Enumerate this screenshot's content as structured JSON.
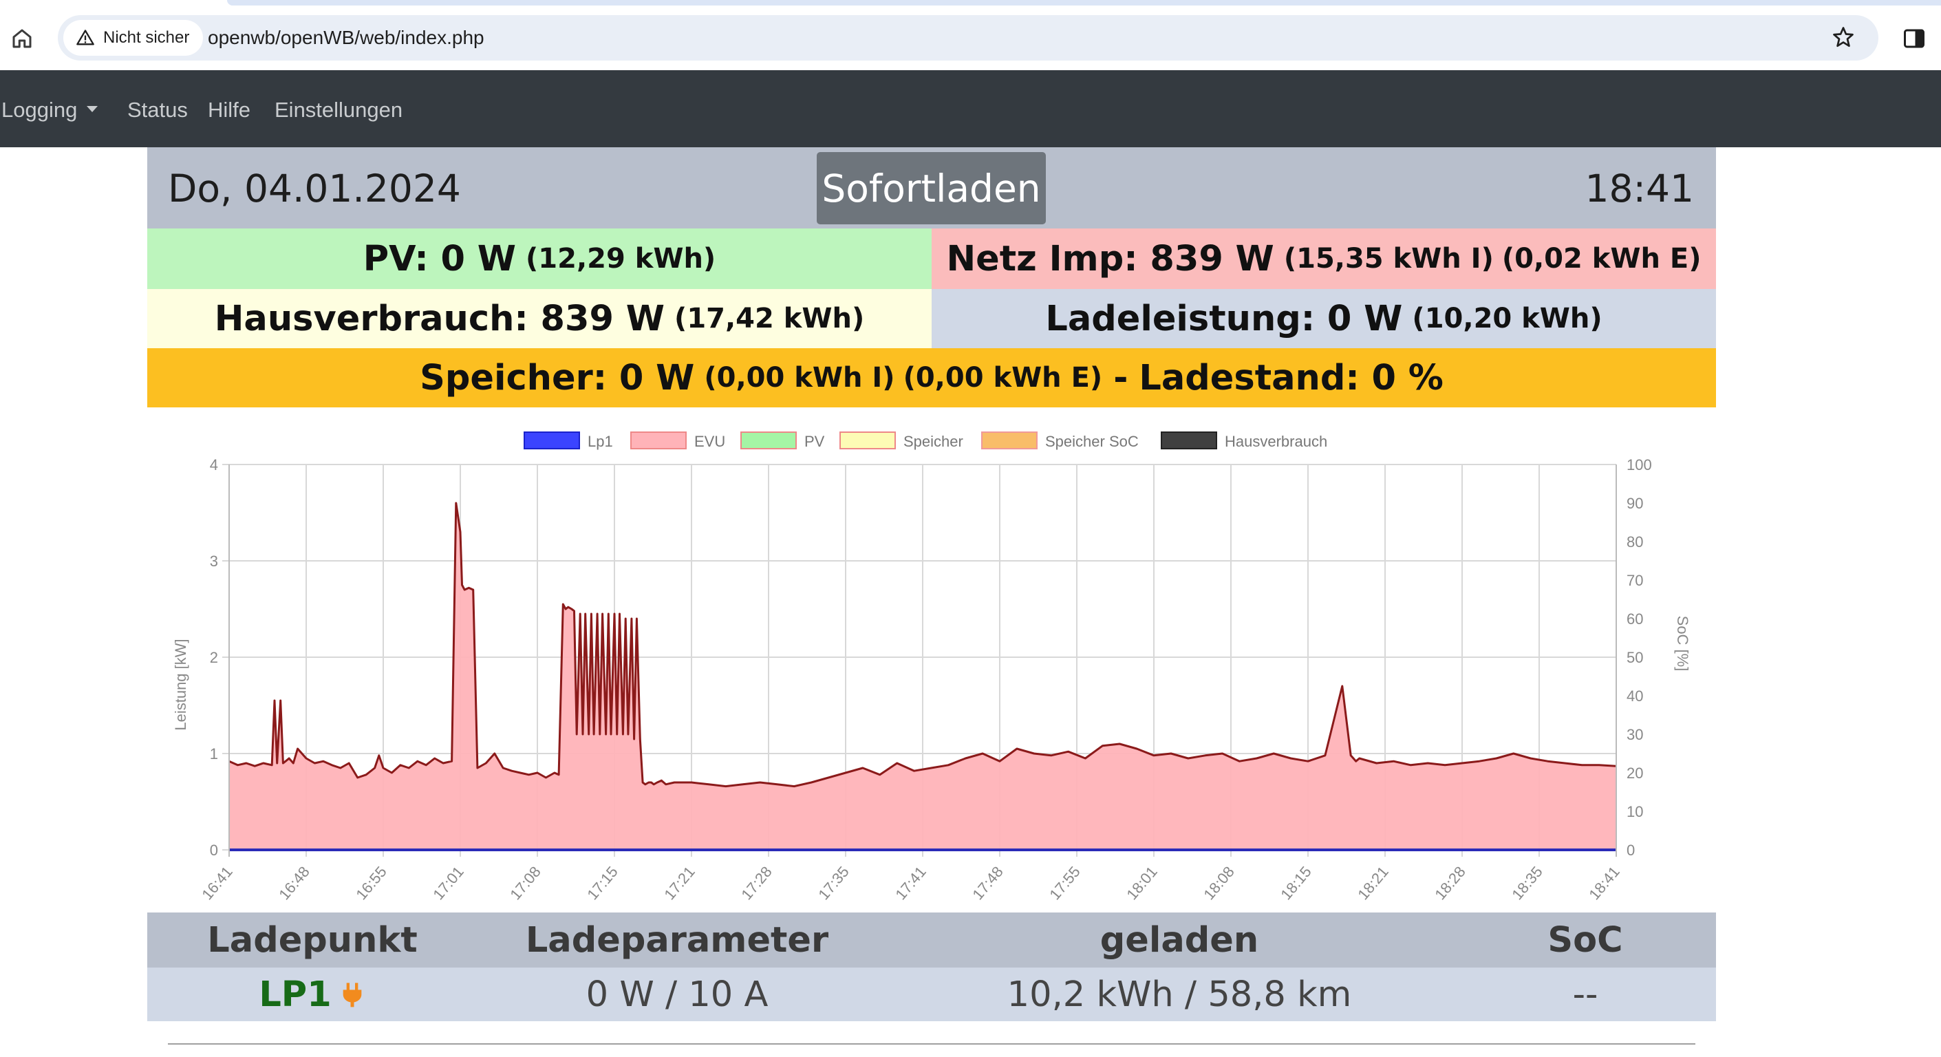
{
  "browser": {
    "security_label": "Nicht sicher",
    "url": "openwb/openWB/web/index.php"
  },
  "nav": {
    "items": [
      "Logging",
      "Status",
      "Hilfe",
      "Einstellungen"
    ]
  },
  "header": {
    "date": "Do, 04.01.2024",
    "mode_button": "Sofortladen",
    "time": "18:41"
  },
  "stats": {
    "pv_label": "PV: 0 W",
    "pv_energy": "(12,29 kWh)",
    "netz_label": "Netz Imp: 839 W",
    "netz_import": "(15,35 kWh I)",
    "netz_export": "(0,02 kWh E)",
    "haus_label": "Hausverbrauch: 839 W",
    "haus_energy": "(17,42 kWh)",
    "lade_label": "Ladeleistung: 0 W",
    "lade_energy": "(10,20 kWh)",
    "speicher_label": "Speicher: 0 W",
    "speicher_import": "(0,00 kWh I)",
    "speicher_export": "(0,00 kWh E)",
    "speicher_dash": "-",
    "ladestand_label": "Ladestand: 0 %"
  },
  "colors": {
    "pv": "#bdf5bd",
    "netz": "#fbbcbc",
    "haus": "#fefee0",
    "lade": "#d0d8e6",
    "speicher": "#fcbf21",
    "header": "#b8bfcc",
    "nav": "#343a40"
  },
  "chart_data": {
    "type": "area",
    "ylabel": "Leistung [kW]",
    "y2label": "SoC [%]",
    "ylim": [
      0,
      4
    ],
    "y2lim": [
      0,
      100
    ],
    "yticks": [
      "0",
      "1",
      "2",
      "3",
      "4"
    ],
    "y2ticks": [
      "0",
      "10",
      "20",
      "30",
      "40",
      "50",
      "60",
      "70",
      "80",
      "90",
      "100"
    ],
    "xticks": [
      "16:41",
      "16:48",
      "16:55",
      "17:01",
      "17:08",
      "17:15",
      "17:21",
      "17:28",
      "17:35",
      "17:41",
      "17:48",
      "17:55",
      "18:01",
      "18:08",
      "18:15",
      "18:21",
      "18:28",
      "18:35",
      "18:41"
    ],
    "grid": true,
    "legend_position": "top",
    "legend": [
      {
        "name": "Lp1",
        "color": "#3b44ff"
      },
      {
        "name": "EVU",
        "color": "#ffb3b8"
      },
      {
        "name": "PV",
        "color": "#a5f5a5"
      },
      {
        "name": "Speicher",
        "color": "#fdfbb5"
      },
      {
        "name": "Speicher SoC",
        "color": "#f9b24f"
      },
      {
        "name": "Hausverbrauch",
        "color": "#404040"
      }
    ],
    "series": [
      {
        "name": "EVU",
        "x": [
          0,
          1,
          2,
          3,
          4,
          5,
          5.3,
          5.6,
          6,
          6.3,
          6.6,
          7,
          7.5,
          8,
          9,
          10,
          11,
          12,
          13,
          14,
          15,
          16,
          17,
          17.5,
          18,
          19,
          20,
          21,
          22,
          23,
          24,
          25,
          26,
          26.5,
          27,
          27.2,
          27.5,
          28,
          28.5,
          29,
          30,
          31,
          32,
          33,
          34,
          35,
          36,
          37,
          38,
          38.5,
          39,
          39.3,
          39.6,
          40,
          40.3,
          40.6,
          41,
          41.3,
          41.6,
          42,
          42.3,
          42.6,
          43,
          43.3,
          43.6,
          44,
          44.3,
          44.6,
          45,
          45.3,
          45.6,
          46,
          46.3,
          46.6,
          47,
          47.3,
          47.6,
          48,
          48.3,
          48.6,
          49,
          49.3,
          49.6,
          50,
          50.5,
          51,
          52,
          54,
          56,
          58,
          60,
          62,
          64,
          66,
          68,
          70,
          72,
          74,
          76,
          78,
          80,
          82,
          84,
          86,
          88,
          90,
          92,
          94,
          96,
          98,
          100,
          102,
          104,
          106,
          108,
          110,
          112,
          114,
          116,
          118,
          120,
          122,
          124,
          126,
          128,
          130,
          131,
          131.3,
          131.6,
          132,
          134,
          136,
          138,
          140,
          142,
          144,
          146,
          148,
          150,
          152,
          154,
          156,
          158,
          160,
          162
        ],
        "values": [
          0.92,
          0.88,
          0.9,
          0.87,
          0.9,
          0.88,
          1.55,
          0.9,
          1.55,
          0.9,
          0.92,
          0.95,
          0.9,
          1.05,
          0.95,
          0.9,
          0.92,
          0.88,
          0.85,
          0.9,
          0.75,
          0.78,
          0.85,
          0.98,
          0.85,
          0.8,
          0.88,
          0.85,
          0.92,
          0.88,
          0.95,
          0.9,
          0.92,
          3.6,
          3.3,
          2.75,
          2.7,
          2.72,
          2.7,
          0.85,
          0.9,
          1.0,
          0.85,
          0.82,
          0.8,
          0.78,
          0.8,
          0.75,
          0.8,
          0.78,
          2.55,
          2.5,
          2.52,
          2.5,
          2.48,
          1.2,
          2.45,
          1.2,
          2.45,
          1.2,
          2.45,
          1.2,
          2.45,
          1.2,
          2.45,
          1.2,
          2.45,
          1.2,
          2.45,
          1.2,
          2.45,
          1.2,
          2.4,
          1.2,
          2.4,
          1.15,
          2.4,
          1.15,
          0.7,
          0.68,
          0.7,
          0.7,
          0.68,
          0.7,
          0.72,
          0.68,
          0.7,
          0.7,
          0.68,
          0.66,
          0.68,
          0.7,
          0.68,
          0.66,
          0.7,
          0.75,
          0.8,
          0.85,
          0.78,
          0.9,
          0.82,
          0.85,
          0.88,
          0.95,
          1.0,
          0.92,
          1.05,
          1.0,
          0.98,
          1.02,
          0.95,
          1.08,
          1.1,
          1.05,
          0.98,
          1.0,
          0.95,
          0.98,
          1.0,
          0.92,
          0.95,
          1.0,
          0.95,
          0.92,
          0.98,
          1.7,
          0.98,
          0.95,
          0.92,
          0.95,
          0.9,
          0.92,
          0.88,
          0.9,
          0.88,
          0.9,
          0.92,
          0.95,
          1.0,
          0.95,
          0.92,
          0.9,
          0.88,
          0.88,
          0.87
        ]
      },
      {
        "name": "Lp1",
        "x": [
          0,
          162
        ],
        "values": [
          0,
          0
        ]
      }
    ]
  },
  "table": {
    "headers": [
      "Ladepunkt",
      "Ladeparameter",
      "geladen",
      "SoC"
    ],
    "row": {
      "ladepunkt": "LP1",
      "ladeparameter": "0 W / 10 A",
      "geladen": "10,2 kWh / 58,8 km",
      "soc": "--"
    }
  }
}
